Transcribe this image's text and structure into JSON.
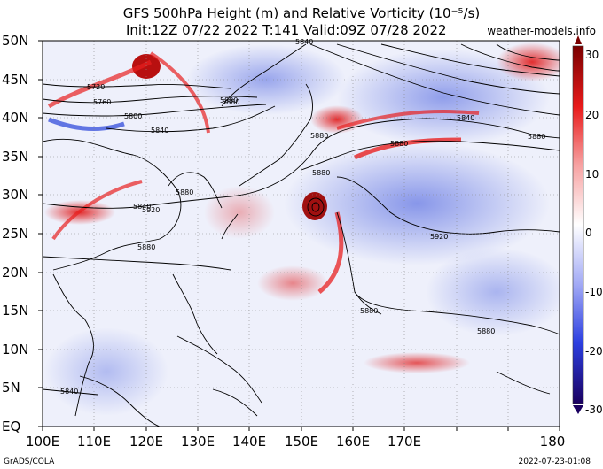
{
  "header": {
    "title_line1": "GFS 500hPa Height (m) and Relative Vorticity (10⁻⁵/s)",
    "title_line2": "Init:12Z 07/22 2022 T:141 Valid:09Z 07/28 2022",
    "credit": "weather-models.info"
  },
  "axes": {
    "lat_labels": [
      "50N",
      "45N",
      "40N",
      "35N",
      "30N",
      "25N",
      "20N",
      "15N",
      "10N",
      "5N",
      "EQ"
    ],
    "lon_labels": [
      "100E",
      "110E",
      "120E",
      "130E",
      "140E",
      "150E",
      "160E",
      "170E",
      "180"
    ]
  },
  "colorbar": {
    "ticks": [
      "30",
      "20",
      "10",
      "0",
      "-10",
      "-20",
      "-30"
    ],
    "colors": {
      "max": "#7a0000",
      "high": "#e81a1a",
      "mid": "#ffffff",
      "low": "#2c3fe0",
      "min": "#1a0060"
    }
  },
  "contour_labels": [
    "5720",
    "5760",
    "5800",
    "5840",
    "5880",
    "5920",
    "5840",
    "5880",
    "5880",
    "5880",
    "5840",
    "5880",
    "5880",
    "5880",
    "5840",
    "5880",
    "5920",
    "5880",
    "5880",
    "5840"
  ],
  "footer": {
    "left": "GrADS/COLA",
    "right": "2022-07-23-01:08"
  }
}
